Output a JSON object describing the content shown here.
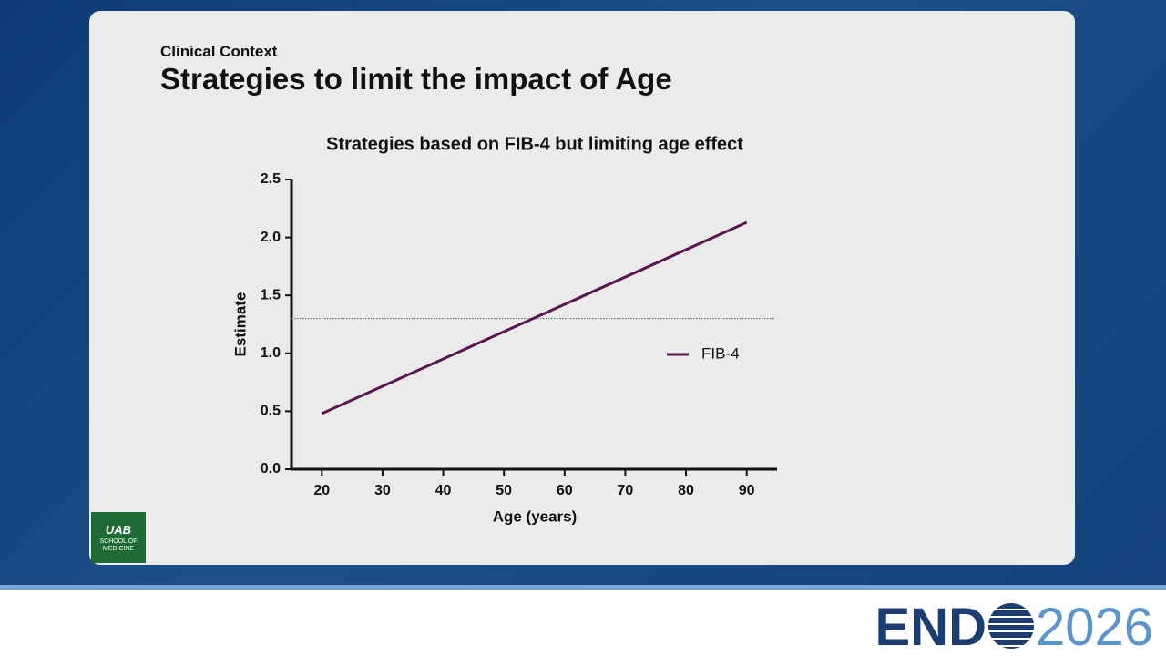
{
  "header": {
    "kicker": "Clinical Context",
    "title": "Strategies to limit the impact of Age"
  },
  "logo": {
    "name": "UAB",
    "subtitle": "SCHOOL OF MEDICINE"
  },
  "footer": {
    "brand": "END",
    "year": "2026"
  },
  "chart_data": {
    "type": "line",
    "title": "Strategies based on FIB-4 but limiting age effect",
    "x_label": "Age (years)",
    "y_label": "Estimate",
    "x": [
      20,
      90
    ],
    "series": [
      {
        "name": "FIB-4",
        "color": "#5a1550",
        "values": [
          0.48,
          2.13
        ]
      }
    ],
    "xlim": [
      15,
      95
    ],
    "xticks": [
      20,
      30,
      40,
      50,
      60,
      70,
      80,
      90
    ],
    "ylim": [
      0,
      2.5
    ],
    "yticks": [
      {
        "value": 0,
        "label": "0.0"
      },
      0.5,
      {
        "value": 1,
        "label": "1.0"
      },
      1.5,
      {
        "value": 2,
        "label": "2.0"
      },
      2.5
    ],
    "reference_line": 1.3,
    "legend": "right",
    "grid": false
  }
}
